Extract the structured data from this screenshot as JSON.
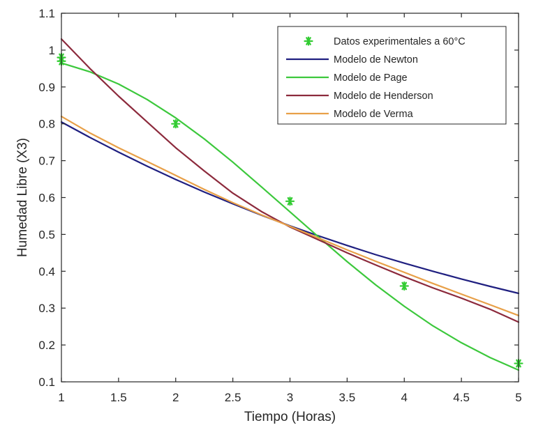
{
  "chart_data": {
    "type": "line",
    "title": "",
    "xlabel": "Tiempo (Horas)",
    "ylabel": "Humedad Libre (X3)",
    "xlim": [
      1,
      5
    ],
    "ylim": [
      0.1,
      1.1
    ],
    "xticks": [
      1,
      1.5,
      2,
      2.5,
      3,
      3.5,
      4,
      4.5,
      5
    ],
    "yticks": [
      0.1,
      0.2,
      0.3,
      0.4,
      0.5,
      0.6,
      0.7,
      0.8,
      0.9,
      1,
      1.1
    ],
    "xtick_labels": [
      "1",
      "1.5",
      "2",
      "2.5",
      "3",
      "3.5",
      "4",
      "4.5",
      "5"
    ],
    "ytick_labels": [
      "0.1",
      "0.2",
      "0.3",
      "0.4",
      "0.5",
      "0.6",
      "0.7",
      "0.8",
      "0.9",
      "1",
      "1.1"
    ],
    "grid": false,
    "legend_position": "top-right",
    "series": [
      {
        "name": "Datos experimentales a 60°C",
        "kind": "scatter",
        "marker": "asterisk",
        "color": "#33cc33",
        "x": [
          1,
          1,
          2,
          3,
          4,
          5
        ],
        "y": [
          0.98,
          0.97,
          0.8,
          0.59,
          0.36,
          0.15
        ]
      },
      {
        "name": "Modelo de Newton",
        "kind": "line",
        "color": "#1f1f80",
        "x": [
          1,
          1.25,
          1.5,
          1.75,
          2,
          2.25,
          2.5,
          2.75,
          3,
          3.25,
          3.5,
          3.75,
          4,
          4.25,
          4.5,
          4.75,
          5
        ],
        "y": [
          0.805,
          0.763,
          0.723,
          0.685,
          0.649,
          0.615,
          0.583,
          0.552,
          0.523,
          0.496,
          0.47,
          0.445,
          0.422,
          0.4,
          0.379,
          0.359,
          0.34
        ]
      },
      {
        "name": "Modelo de Page",
        "kind": "line",
        "color": "#3cc83c",
        "x": [
          1,
          1.25,
          1.5,
          1.75,
          2,
          2.25,
          2.5,
          2.75,
          3,
          3.25,
          3.5,
          3.75,
          4,
          4.25,
          4.5,
          4.75,
          5
        ],
        "y": [
          0.965,
          0.941,
          0.908,
          0.866,
          0.816,
          0.759,
          0.696,
          0.629,
          0.561,
          0.493,
          0.426,
          0.363,
          0.305,
          0.252,
          0.206,
          0.166,
          0.132
        ]
      },
      {
        "name": "Modelo de Henderson",
        "kind": "line",
        "color": "#8c2a3c",
        "x": [
          1,
          1.25,
          1.5,
          1.75,
          2,
          2.25,
          2.5,
          2.75,
          3,
          3.25,
          3.5,
          3.75,
          4,
          4.25,
          4.5,
          4.75,
          5
        ],
        "y": [
          1.03,
          0.95,
          0.875,
          0.805,
          0.735,
          0.672,
          0.612,
          0.562,
          0.52,
          0.485,
          0.45,
          0.417,
          0.385,
          0.355,
          0.327,
          0.297,
          0.262
        ]
      },
      {
        "name": "Modelo de Verma",
        "kind": "line",
        "color": "#e8a048",
        "x": [
          1,
          1.25,
          1.5,
          1.75,
          2,
          2.25,
          2.5,
          2.75,
          3,
          3.25,
          3.5,
          3.75,
          4,
          4.25,
          4.5,
          4.75,
          5
        ],
        "y": [
          0.82,
          0.775,
          0.735,
          0.698,
          0.66,
          0.622,
          0.586,
          0.553,
          0.522,
          0.49,
          0.458,
          0.427,
          0.397,
          0.367,
          0.338,
          0.309,
          0.28
        ]
      }
    ]
  }
}
